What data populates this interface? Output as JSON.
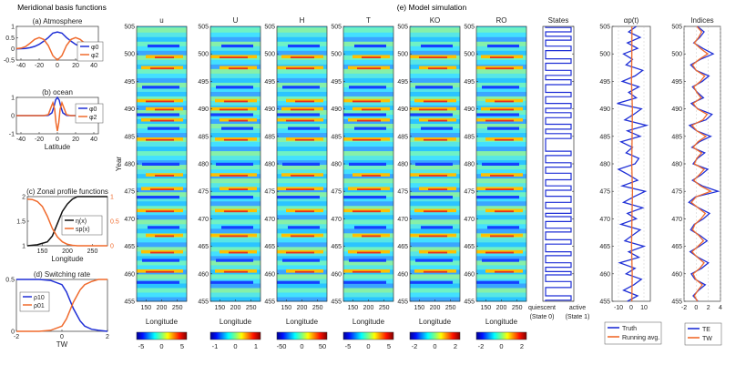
{
  "figure": {
    "left_title": "Meridional basis functions",
    "sim_title": "(e) Model simulation"
  },
  "chart_data": [
    {
      "id": "a",
      "type": "line",
      "title": "(a) Atmosphere",
      "xlim": [
        -45,
        45
      ],
      "ylim": [
        -0.5,
        1
      ],
      "xticks": [
        "-40",
        "-20",
        "0",
        "20",
        "40"
      ],
      "yticks": [
        "-0.5",
        "0",
        "0.5",
        "1"
      ],
      "series": [
        {
          "name": "φ0",
          "color": "#1f2fd6",
          "x": [
            -45,
            -40,
            -35,
            -30,
            -25,
            -20,
            -15,
            -10,
            -5,
            0,
            5,
            10,
            15,
            20,
            25,
            30,
            35,
            40,
            45
          ],
          "values": [
            0.002,
            0.007,
            0.02,
            0.05,
            0.11,
            0.2,
            0.34,
            0.5,
            0.7,
            0.75,
            0.7,
            0.5,
            0.34,
            0.2,
            0.11,
            0.05,
            0.02,
            0.007,
            0.002
          ]
        },
        {
          "name": "φ2",
          "color": "#f06a2c",
          "x": [
            -45,
            -40,
            -35,
            -30,
            -25,
            -20,
            -15,
            -10,
            -5,
            0,
            5,
            10,
            15,
            20,
            25,
            30,
            35,
            40,
            45
          ],
          "values": [
            0.01,
            0.03,
            0.1,
            0.25,
            0.42,
            0.5,
            0.42,
            0.15,
            -0.3,
            -0.5,
            -0.3,
            0.15,
            0.42,
            0.5,
            0.42,
            0.25,
            0.1,
            0.03,
            0.01
          ]
        }
      ]
    },
    {
      "id": "b",
      "type": "line",
      "title": "(b) ocean",
      "xlabel": "Latitude",
      "xlim": [
        -45,
        45
      ],
      "ylim": [
        -1,
        1
      ],
      "xticks": [
        "-40",
        "-20",
        "0",
        "20",
        "40"
      ],
      "yticks": [
        "-1",
        "0",
        "1"
      ],
      "series": [
        {
          "name": "φ0",
          "color": "#1f2fd6",
          "x": [
            -45,
            -30,
            -15,
            -10,
            -6,
            -4,
            -2,
            0,
            2,
            4,
            6,
            10,
            15,
            30,
            45
          ],
          "values": [
            0,
            0,
            0,
            0.01,
            0.15,
            0.45,
            0.85,
            1,
            0.85,
            0.45,
            0.15,
            0.01,
            0,
            0,
            0
          ]
        },
        {
          "name": "φ2",
          "color": "#f06a2c",
          "x": [
            -45,
            -30,
            -15,
            -10,
            -7,
            -5,
            -3,
            -1.5,
            0,
            1.5,
            3,
            5,
            7,
            10,
            15,
            30,
            45
          ],
          "values": [
            0,
            0,
            0,
            0.05,
            0.45,
            0.7,
            0.35,
            -0.4,
            -0.85,
            -0.4,
            0.35,
            0.7,
            0.45,
            0.05,
            0,
            0,
            0
          ]
        }
      ]
    },
    {
      "id": "c",
      "type": "line",
      "title": "(c) Zonal profile functions",
      "xlabel": "Longitude",
      "xlim": [
        120,
        280
      ],
      "ylim_left": [
        1,
        2
      ],
      "ylim_right": [
        0,
        1
      ],
      "xticks": [
        "150",
        "200",
        "250"
      ],
      "yticks_left": [
        "1",
        "1.5",
        "2"
      ],
      "yticks_right": [
        "0",
        "0.5",
        "1"
      ],
      "series": [
        {
          "name": "η(x)",
          "color": "#111111",
          "axis": "left",
          "x": [
            120,
            140,
            160,
            170,
            180,
            190,
            200,
            210,
            220,
            240,
            260,
            280
          ],
          "values": [
            1.0,
            1.02,
            1.08,
            1.2,
            1.45,
            1.7,
            1.85,
            1.95,
            2.0,
            2.0,
            2.0,
            2.0
          ]
        },
        {
          "name": "sp(x)",
          "color": "#f06a2c",
          "axis": "right",
          "x": [
            120,
            130,
            140,
            150,
            160,
            170,
            180,
            190,
            200,
            210,
            220,
            240,
            280
          ],
          "values": [
            0.95,
            0.94,
            0.9,
            0.8,
            0.6,
            0.35,
            0.18,
            0.08,
            0.03,
            0.01,
            0,
            0,
            0
          ]
        }
      ]
    },
    {
      "id": "d",
      "type": "line",
      "title": "(d) Switching rate",
      "xlabel": "TW",
      "xlim": [
        -2,
        2
      ],
      "ylim": [
        0,
        0.5
      ],
      "xticks": [
        "-2",
        "0",
        "2"
      ],
      "yticks": [
        "0",
        "0.5"
      ],
      "series": [
        {
          "name": "ρ10",
          "color": "#1f2fd6",
          "x": [
            -2,
            -1.5,
            -1,
            -0.5,
            0,
            0.2,
            0.5,
            0.8,
            1,
            1.3,
            1.6,
            2
          ],
          "values": [
            0.5,
            0.5,
            0.5,
            0.49,
            0.45,
            0.38,
            0.22,
            0.1,
            0.05,
            0.02,
            0.01,
            0
          ]
        },
        {
          "name": "ρ01",
          "color": "#f06a2c",
          "x": [
            -2,
            -1.5,
            -1,
            -0.5,
            0,
            0.2,
            0.5,
            0.8,
            1,
            1.3,
            1.6,
            2
          ],
          "values": [
            0,
            0,
            0,
            0.01,
            0.05,
            0.12,
            0.28,
            0.4,
            0.45,
            0.48,
            0.5,
            0.5
          ]
        }
      ]
    },
    {
      "id": "heatmaps",
      "type": "heatmap",
      "ylabel": "Year",
      "xlabel": "Longitude",
      "ylim": [
        455,
        505
      ],
      "yticks": [
        "455",
        "460",
        "465",
        "470",
        "475",
        "480",
        "485",
        "490",
        "495",
        "500",
        "505"
      ],
      "xticks": [
        "150",
        "200",
        "250"
      ],
      "panels": [
        {
          "title": "u",
          "cticks": [
            "-5",
            "0",
            "5"
          ]
        },
        {
          "title": "U",
          "cticks": [
            "-1",
            "0",
            "1"
          ]
        },
        {
          "title": "H",
          "cticks": [
            "-50",
            "0",
            "50"
          ]
        },
        {
          "title": "T",
          "cticks": [
            "-5",
            "0",
            "5"
          ]
        },
        {
          "title": "KO",
          "cticks": [
            "-2",
            "0",
            "2"
          ]
        },
        {
          "title": "RO",
          "cticks": [
            "-2",
            "0",
            "2"
          ]
        }
      ],
      "warm_years": [
        460.0,
        463.5,
        466.5,
        471.0,
        475.0,
        477.5,
        484.0,
        487.5,
        489.5,
        491.0,
        497.0,
        499.0
      ],
      "cold_years": [
        458.0,
        462.0,
        468.0,
        473.5,
        479.5,
        486.0,
        488.5,
        493.5,
        501.0
      ]
    },
    {
      "id": "states",
      "type": "line",
      "title": "States",
      "xlabels": [
        "quiescent",
        "active",
        "(State 0)",
        "(State 1)"
      ],
      "ylim": [
        455,
        505
      ],
      "yticks": [
        "455",
        "460",
        "465",
        "470",
        "475",
        "480",
        "485",
        "490",
        "495",
        "500",
        "505"
      ],
      "switch_years": [
        455.2,
        456.0,
        457.5,
        458.6,
        459.8,
        460.4,
        461.2,
        462.0,
        463.3,
        464.0,
        465.4,
        466.2,
        467.6,
        468.3,
        469.5,
        470.4,
        471.0,
        471.9,
        473.0,
        474.1,
        475.2,
        476.0,
        477.1,
        478.3,
        479.4,
        480.2,
        481.5,
        482.3,
        484.6,
        485.5,
        486.3,
        487.2,
        488.4,
        489.3,
        490.1,
        491.0,
        492.2,
        493.0,
        494.4,
        495.3,
        496.1,
        497.0,
        498.3,
        499.1,
        500.6,
        501.4,
        502.5,
        503.2,
        504.0,
        504.8
      ]
    },
    {
      "id": "alpha",
      "type": "line",
      "title": "αp(t)",
      "ylim": [
        455,
        505
      ],
      "xlim": [
        -15,
        15
      ],
      "xticks": [
        "-10",
        "0",
        "10"
      ],
      "yticks": [
        "455",
        "460",
        "465",
        "470",
        "475",
        "480",
        "485",
        "490",
        "495",
        "500",
        "505"
      ],
      "series": [
        {
          "name": "Truth",
          "color": "#1f2fd6",
          "years": [
            455,
            456,
            457,
            458,
            459,
            460,
            461,
            462,
            463,
            464,
            465,
            466,
            467,
            468,
            469,
            470,
            471,
            472,
            473,
            474,
            475,
            476,
            477,
            478,
            479,
            480,
            481,
            482,
            483,
            484,
            485,
            486,
            487,
            488,
            489,
            490,
            491,
            492,
            493,
            494,
            495,
            496,
            497,
            498,
            499,
            500,
            501,
            502,
            503,
            504,
            505
          ],
          "values": [
            -3,
            5,
            -6,
            2,
            8,
            -4,
            3,
            -9,
            6,
            -2,
            10,
            -5,
            1,
            7,
            -8,
            4,
            -3,
            9,
            -6,
            2,
            11,
            -7,
            5,
            -2,
            -10,
            3,
            6,
            -4,
            1,
            -8,
            7,
            -3,
            12,
            -5,
            2,
            8,
            -11,
            4,
            -2,
            6,
            -7,
            3,
            9,
            -4,
            1,
            -6,
            5,
            -3,
            7,
            -2,
            4
          ]
        },
        {
          "name": "Running avg.",
          "color": "#f06a2c",
          "years": [
            455,
            460,
            465,
            470,
            475,
            480,
            485,
            490,
            495,
            500,
            505
          ],
          "values": [
            0.5,
            0.8,
            0.3,
            0.6,
            1.0,
            0.4,
            0.7,
            0.9,
            0.2,
            0.5,
            0.6
          ]
        }
      ]
    },
    {
      "id": "indices",
      "type": "line",
      "title": "Indices",
      "ylim": [
        455,
        505
      ],
      "xlim": [
        -2,
        4
      ],
      "xticks": [
        "-2",
        "0",
        "2",
        "4"
      ],
      "yticks": [
        "455",
        "460",
        "465",
        "470",
        "475",
        "480",
        "485",
        "490",
        "495",
        "500",
        "505"
      ],
      "series": [
        {
          "name": "TE",
          "color": "#1f2fd6",
          "years": [
            455,
            456,
            457,
            458,
            459,
            460,
            461,
            462,
            463,
            464,
            465,
            466,
            467,
            468,
            469,
            470,
            471,
            472,
            473,
            474,
            475,
            476,
            477,
            478,
            479,
            480,
            481,
            482,
            483,
            484,
            485,
            486,
            487,
            488,
            489,
            490,
            491,
            492,
            493,
            494,
            495,
            496,
            497,
            498,
            499,
            500,
            501,
            502,
            503,
            504,
            505
          ],
          "values": [
            0.3,
            -0.5,
            0.4,
            1.5,
            -0.2,
            -0.8,
            0.9,
            2.0,
            0.3,
            -1.0,
            0.5,
            1.8,
            0.6,
            -0.9,
            -0.3,
            1.2,
            2.2,
            0.4,
            -1.2,
            -0.1,
            3.6,
            1.0,
            -0.6,
            0.8,
            1.9,
            -0.5,
            0.2,
            1.4,
            -0.7,
            0.5,
            2.4,
            0.1,
            -1.1,
            1.6,
            2.6,
            0.3,
            -0.8,
            1.2,
            0.2,
            -0.6,
            1.0,
            2.1,
            0.0,
            -0.9,
            0.7,
            2.8,
            1.1,
            -0.4,
            0.6,
            1.3,
            0.2
          ]
        },
        {
          "name": "TW",
          "color": "#f06a2c",
          "years": [
            455,
            456,
            457,
            458,
            459,
            460,
            461,
            462,
            463,
            464,
            465,
            466,
            467,
            468,
            469,
            470,
            471,
            472,
            473,
            474,
            475,
            476,
            477,
            478,
            479,
            480,
            481,
            482,
            483,
            484,
            485,
            486,
            487,
            488,
            489,
            490,
            491,
            492,
            493,
            494,
            495,
            496,
            497,
            498,
            499,
            500,
            501,
            502,
            503,
            504,
            505
          ],
          "values": [
            0.2,
            -0.3,
            0.3,
            1.0,
            -0.1,
            -0.5,
            0.6,
            1.3,
            0.2,
            -0.7,
            0.3,
            1.2,
            0.4,
            -0.6,
            -0.2,
            0.8,
            1.5,
            0.3,
            -0.8,
            0.0,
            2.4,
            0.7,
            -0.4,
            0.5,
            1.3,
            -0.3,
            0.1,
            0.9,
            -0.5,
            0.3,
            1.6,
            0.1,
            -0.7,
            1.1,
            1.8,
            0.2,
            -0.5,
            0.8,
            0.1,
            -0.4,
            0.7,
            1.4,
            0.0,
            -0.6,
            0.5,
            1.9,
            0.7,
            -0.3,
            0.4,
            0.9,
            0.1
          ]
        }
      ]
    }
  ],
  "legends": {
    "a": [
      "φ0",
      "φ2"
    ],
    "b": [
      "φ0",
      "φ2"
    ],
    "c": [
      "η(x)",
      "sp(x)"
    ],
    "d": [
      "ρ10",
      "ρ01"
    ],
    "alpha": [
      "Truth",
      "Running avg."
    ],
    "indices": [
      "TE",
      "TW"
    ]
  }
}
